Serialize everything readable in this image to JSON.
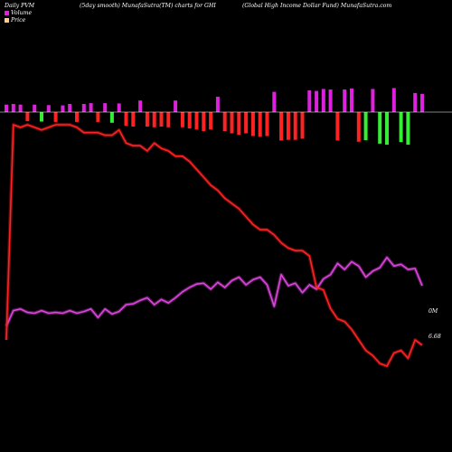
{
  "header": {
    "left": "Daily PVM",
    "smooth": "(5day smooth) MunafaSutra(TM) charts for GHI",
    "right": "(Global High Income   Dollar Fund) MunafaSutra.com"
  },
  "legend": {
    "volume_label": "Volume",
    "price_label": "Price",
    "volume_color": "#dd22dd",
    "price_color": "#ffcc99"
  },
  "chart_data": {
    "type": "line",
    "background": "#000000",
    "grid": false,
    "legend_position": "top-left",
    "x_count": 60,
    "price": {
      "name": "Price",
      "color": "#ff2222",
      "values": [
        6.68,
        7.5,
        7.49,
        7.5,
        7.49,
        7.48,
        7.49,
        7.5,
        7.5,
        7.5,
        7.49,
        7.47,
        7.47,
        7.47,
        7.46,
        7.46,
        7.48,
        7.43,
        7.42,
        7.42,
        7.4,
        7.43,
        7.41,
        7.4,
        7.38,
        7.38,
        7.36,
        7.33,
        7.3,
        7.27,
        7.25,
        7.22,
        7.2,
        7.18,
        7.15,
        7.12,
        7.1,
        7.1,
        7.08,
        7.05,
        7.03,
        7.02,
        7.02,
        7.0,
        6.88,
        6.87,
        6.8,
        6.76,
        6.75,
        6.72,
        6.68,
        6.64,
        6.62,
        6.59,
        6.58,
        6.63,
        6.64,
        6.61,
        6.68,
        6.66
      ]
    },
    "volume_line": {
      "name": "Volume",
      "color": "#dd44dd",
      "values": [
        0.15,
        0.33,
        0.35,
        0.31,
        0.3,
        0.33,
        0.3,
        0.31,
        0.3,
        0.33,
        0.3,
        0.32,
        0.35,
        0.25,
        0.35,
        0.29,
        0.32,
        0.4,
        0.41,
        0.45,
        0.48,
        0.4,
        0.46,
        0.42,
        0.48,
        0.55,
        0.6,
        0.64,
        0.65,
        0.58,
        0.66,
        0.6,
        0.68,
        0.72,
        0.63,
        0.69,
        0.72,
        0.63,
        0.38,
        0.75,
        0.62,
        0.65,
        0.54,
        0.63,
        0.58,
        0.7,
        0.75,
        0.88,
        0.81,
        0.9,
        0.85,
        0.72,
        0.79,
        0.83,
        0.95,
        0.85,
        0.87,
        0.81,
        0.82,
        0.62
      ]
    },
    "volume_bars": {
      "name": "Volume",
      "values": [
        0.26,
        0.28,
        0.26,
        0.24,
        0.26,
        0.25,
        0.24,
        0.26,
        0.23,
        0.28,
        0.26,
        0.28,
        0.31,
        0.26,
        0.31,
        0.28,
        0.3,
        0.36,
        0.38,
        0.4,
        0.38,
        0.4,
        0.38,
        0.4,
        0.4,
        0.4,
        0.43,
        0.46,
        0.5,
        0.46,
        0.53,
        0.5,
        0.56,
        0.6,
        0.56,
        0.63,
        0.65,
        0.63,
        0.7,
        0.75,
        0.73,
        0.73,
        0.7,
        0.75,
        0.73,
        0.8,
        0.78,
        0.75,
        0.78,
        0.82,
        0.78,
        0.74,
        0.8,
        0.83,
        0.86,
        0.83,
        0.79,
        0.86,
        0.66,
        0.63
      ],
      "colors": [
        "#dd22dd",
        "#dd22dd",
        "#dd22dd",
        "#ff2222",
        "#dd22dd",
        "#33ee33",
        "#dd22dd",
        "#ff2222",
        "#dd22dd",
        "#dd22dd",
        "#ff2222",
        "#dd22dd",
        "#dd22dd",
        "#ff2222",
        "#dd22dd",
        "#33ee33",
        "#dd22dd",
        "#ff2222",
        "#ff2222",
        "#dd22dd",
        "#ff2222",
        "#ff2222",
        "#ff2222",
        "#ff2222",
        "#dd22dd",
        "#ff2222",
        "#ff2222",
        "#ff2222",
        "#ff2222",
        "#ff2222",
        "#dd22dd",
        "#ff2222",
        "#ff2222",
        "#ff2222",
        "#ff2222",
        "#ff2222",
        "#ff2222",
        "#ff2222",
        "#dd22dd",
        "#ff2222",
        "#ff2222",
        "#ff2222",
        "#ff2222",
        "#dd22dd",
        "#dd22dd",
        "#dd22dd",
        "#dd22dd",
        "#ff2222",
        "#dd22dd",
        "#dd22dd",
        "#ff2222",
        "#33ee33",
        "#dd22dd",
        "#33ee33",
        "#33ee33",
        "#dd22dd",
        "#33ee33",
        "#33ee33",
        "#dd22dd",
        "#dd22dd"
      ],
      "directions": [
        "up",
        "up",
        "up",
        "down",
        "up",
        "down",
        "up",
        "down",
        "up",
        "up",
        "down",
        "up",
        "up",
        "down",
        "up",
        "down",
        "up",
        "down",
        "down",
        "up",
        "down",
        "down",
        "down",
        "down",
        "up",
        "down",
        "down",
        "down",
        "down",
        "down",
        "up",
        "down",
        "down",
        "down",
        "down",
        "down",
        "down",
        "down",
        "up",
        "down",
        "down",
        "down",
        "down",
        "up",
        "up",
        "up",
        "up",
        "down",
        "up",
        "up",
        "down",
        "down",
        "up",
        "down",
        "down",
        "up",
        "down",
        "down",
        "up",
        "up"
      ]
    },
    "right_labels": {
      "volume": "0M",
      "price": "6.68"
    }
  }
}
